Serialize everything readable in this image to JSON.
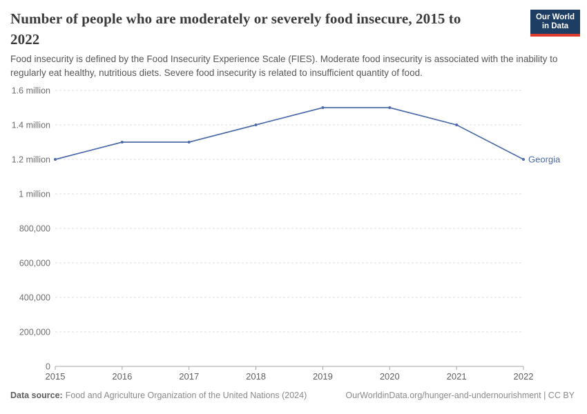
{
  "header": {
    "title": "Number of people who are moderately or severely food insecure, 2015 to 2022",
    "subtitle": "Food insecurity is defined by the Food Insecurity Experience Scale (FIES). Moderate food insecurity is associated with the inability to regularly eat healthy, nutritious diets. Severe food insecurity is related to insufficient quantity of food.",
    "logo": {
      "line1": "Our World",
      "line2": "in Data"
    }
  },
  "chart_data": {
    "type": "line",
    "title": "Number of people who are moderately or severely food insecure, 2015 to 2022",
    "x": [
      2015,
      2016,
      2017,
      2018,
      2019,
      2020,
      2021,
      2022
    ],
    "series": [
      {
        "name": "Georgia",
        "color": "#4c6ba8",
        "values": [
          1200000,
          1300000,
          1300000,
          1400000,
          1500000,
          1500000,
          1400000,
          1200000
        ]
      }
    ],
    "ylim": [
      0,
      1600000
    ],
    "yticks": [
      {
        "value": 0,
        "label": "0"
      },
      {
        "value": 200000,
        "label": "200,000"
      },
      {
        "value": 400000,
        "label": "400,000"
      },
      {
        "value": 600000,
        "label": "600,000"
      },
      {
        "value": 800000,
        "label": "800,000"
      },
      {
        "value": 1000000,
        "label": "1 million"
      },
      {
        "value": 1200000,
        "label": "1.2 million"
      },
      {
        "value": 1400000,
        "label": "1.4 million"
      },
      {
        "value": 1600000,
        "label": "1.6 million"
      }
    ],
    "grid": "horizontal-dashed",
    "legend_position": "end-of-line-label"
  },
  "colors": {
    "line": "#4c6ba8",
    "grid": "#dcdcdc",
    "axis": "#a5a5a5",
    "y_tick_label": "#6e6e6e",
    "x_tick_label": "#5f5f5f",
    "title": "#3a3a3a",
    "subtitle": "#565656",
    "logo_bg": "#1d3d63",
    "logo_accent": "#dc3a2c"
  },
  "footer": {
    "source_label": "Data source:",
    "source": "Food and Agriculture Organization of the United Nations (2024)",
    "url_license": "OurWorldinData.org/hunger-and-undernourishment | CC BY"
  }
}
